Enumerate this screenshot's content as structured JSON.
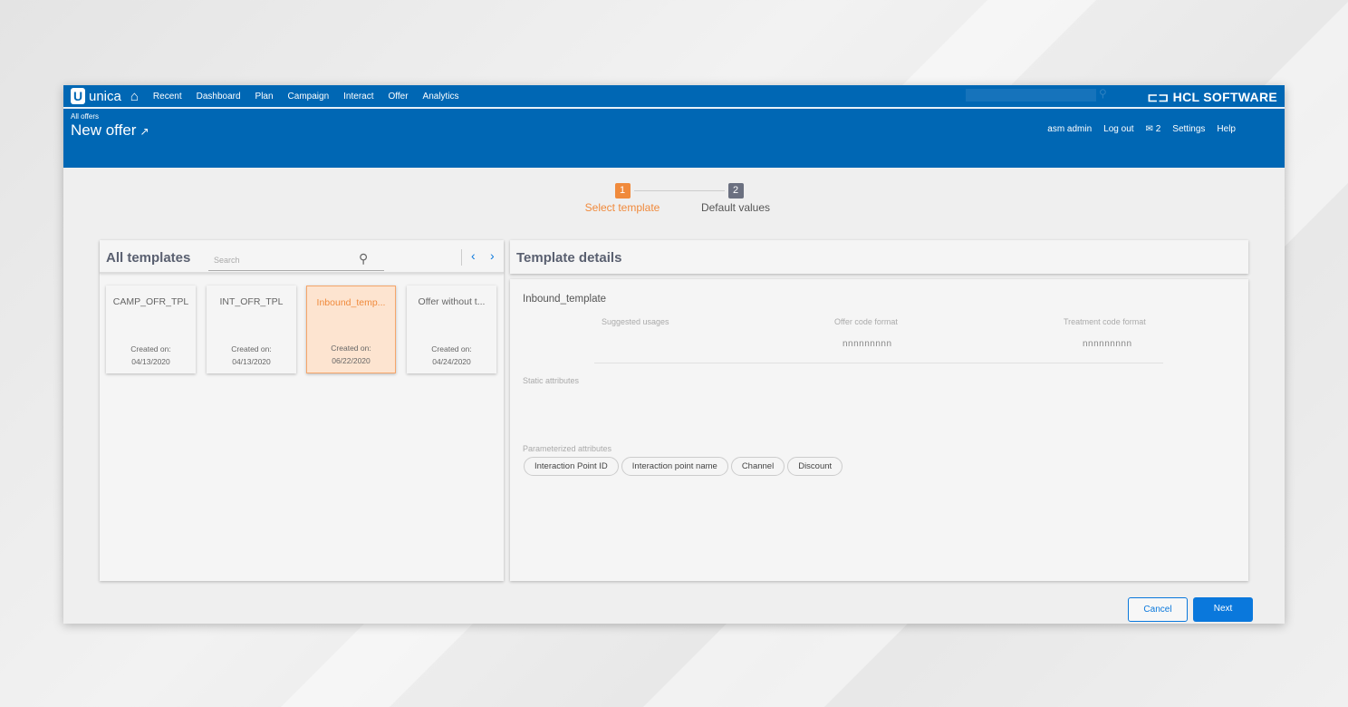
{
  "nav": {
    "brand": "unica",
    "items": [
      "Recent",
      "Dashboard",
      "Plan",
      "Campaign",
      "Interact",
      "Offer",
      "Analytics"
    ],
    "vendor": "HCL SOFTWARE"
  },
  "header": {
    "breadcrumb": "All offers",
    "title": "New offer",
    "user": "asm admin",
    "logout": "Log out",
    "messages": "2",
    "settings": "Settings",
    "help": "Help"
  },
  "stepper": [
    {
      "num": "1",
      "label": "Select template",
      "active": true
    },
    {
      "num": "2",
      "label": "Default values",
      "active": false
    }
  ],
  "templates": {
    "title": "All templates",
    "search_placeholder": "Search",
    "cards": [
      {
        "name": "CAMP_OFR_TPL",
        "created_label": "Created on:",
        "date": "04/13/2020"
      },
      {
        "name": "INT_OFR_TPL",
        "created_label": "Created on:",
        "date": "04/13/2020"
      },
      {
        "name": "Inbound_temp...",
        "created_label": "Created on:",
        "date": "06/22/2020",
        "selected": true
      },
      {
        "name": "Offer without t...",
        "created_label": "Created on:",
        "date": "04/24/2020"
      }
    ]
  },
  "details": {
    "title": "Template details",
    "name": "Inbound_template",
    "suggested_usages": "Suggested usages",
    "offer_code_format": "Offer code format",
    "offer_code_value": "nnnnnnnnn",
    "treatment_code_format": "Treatment code format",
    "treatment_code_value": "nnnnnnnnn",
    "static_attributes": "Static attributes",
    "parameterized_attributes": "Parameterized attributes",
    "chips": [
      "Interaction Point ID",
      "Interaction point name",
      "Channel",
      "Discount"
    ]
  },
  "actions": {
    "cancel": "Cancel",
    "next": "Next"
  },
  "colors": {
    "header": "#0067b4",
    "accent": "#f08a3c",
    "primary": "#0a78dc"
  }
}
